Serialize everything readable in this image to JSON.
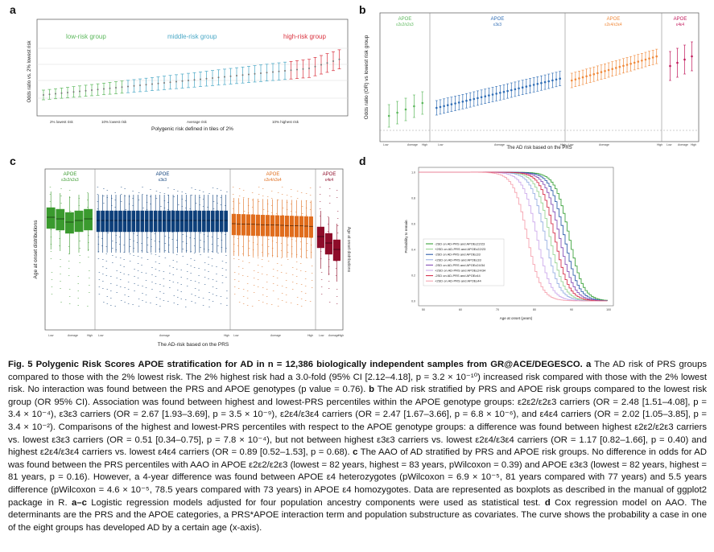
{
  "panels": {
    "a": {
      "label": "a",
      "ylabel": "Odds ratio vs. 2% lowest risk",
      "xlabel": "Polygenic risk defined in tiles of 2%",
      "groups": [
        {
          "name": "low-risk group",
          "color": "#5cb85c"
        },
        {
          "name": "middle-risk group",
          "color": "#4aa8c6"
        },
        {
          "name": "high-risk group",
          "color": "#d9323e"
        }
      ],
      "xticks": [
        "2% lowest risk",
        "10% lowest risk",
        "Average risk",
        "10% highest risk"
      ]
    },
    "b": {
      "label": "b",
      "ylabel": "Odds ratio (OR) vs lowest risk group",
      "xlabel": "The AD risk based on the PRS",
      "groups": [
        {
          "title": "APOE",
          "sub": "ε2ε2/ε2ε3",
          "color": "#5cb85c"
        },
        {
          "title": "APOE",
          "sub": "ε3ε3",
          "color": "#2f6db5"
        },
        {
          "title": "APOE",
          "sub": "ε2ε4/ε3ε4",
          "color": "#f08a3c"
        },
        {
          "title": "APOE",
          "sub": "ε4ε4",
          "color": "#c2185b"
        }
      ],
      "xticks": [
        "Low",
        "Average",
        "High"
      ]
    },
    "c": {
      "label": "c",
      "ylabel": "Age at onset distributions",
      "xlabel": "The AD-risk based on the PRS",
      "groups": [
        {
          "title": "APOE",
          "sub": "ε2ε2/ε2ε3",
          "color": "#3a9a2e"
        },
        {
          "title": "APOE",
          "sub": "ε3ε3",
          "color": "#0d3f7a"
        },
        {
          "title": "APOE",
          "sub": "ε2ε4/ε3ε4",
          "color": "#e06d1d"
        },
        {
          "title": "APOE",
          "sub": "ε4ε4",
          "color": "#8e0c2a"
        }
      ],
      "xticks": [
        "Low",
        "Average",
        "High"
      ]
    },
    "d": {
      "label": "d",
      "ylabel": "Probability to remain",
      "xlabel": "Age at onset (years)",
      "xticks": [
        "50",
        "60",
        "70",
        "80",
        "90",
        "100"
      ],
      "yticks": [
        "1.0",
        "0.8",
        "0.6",
        "0.4",
        "0.2",
        "0.0"
      ],
      "legend": [
        {
          "text": "-2SD on AD-PRS and APOEε22/23",
          "color": "#2a9a2a"
        },
        {
          "text": "+2SD on AD-PRS and APOEε22/23",
          "color": "#8fd08a"
        },
        {
          "text": "-2SD on AD-PRS and APOEε33",
          "color": "#1f4fa3"
        },
        {
          "text": "+2SD on AD-PRS and APOEε33",
          "color": "#8fa9e0"
        },
        {
          "text": "-2SD on AD-PRS and APOEε24/34",
          "color": "#7a3fb0"
        },
        {
          "text": "+2SD on AD-PRS and APOEε24/34",
          "color": "#c9a3ea"
        },
        {
          "text": "-2SD on AD-PRS and APOEε44",
          "color": "#d21f3c"
        },
        {
          "text": "+2SD on AD-PRS and APOEε44",
          "color": "#f59aa8"
        }
      ]
    }
  },
  "caption": {
    "title": "Fig. 5 Polygenic Risk Scores APOE stratification for AD in n = 12,386 biologically independent samples from GR@ACE/DEGESCO.",
    "la": "a",
    "ta": "The AD risk of PRS groups compared to those with the 2% lowest risk. The 2% highest risk had a 3.0-fold (95% CI [2.12–4.18], p = 3.2 × 10⁻¹⁰) increased risk compared with those with the 2% lowest risk. No interaction was found between the PRS and APOE genotypes (p value = 0.76).",
    "lb": "b",
    "tb": "The AD risk stratified by PRS and APOE risk groups compared to the lowest risk group (OR 95% CI). Association was found between highest and lowest-PRS percentiles within the APOE genotype groups: ε2ε2/ε2ε3 carriers (OR = 2.48 [1.51–4.08], p = 3.4 × 10⁻⁴), ε3ε3 carriers (OR = 2.67 [1.93–3.69], p = 3.5 × 10⁻⁹), ε2ε4/ε3ε4 carriers (OR = 2.47 [1.67–3.66], p = 6.8 × 10⁻⁶), and ε4ε4 carriers (OR = 2.02 [1.05–3.85], p = 3.4 × 10⁻²). Comparisons of the highest and lowest-PRS percentiles with respect to the APOE genotype groups: a difference was found between highest ε2ε2/ε2ε3 carriers vs. lowest ε3ε3 carriers (OR = 0.51 [0.34–0.75], p = 7.8 × 10⁻⁴), but not between highest ε3ε3 carriers vs. lowest ε2ε4/ε3ε4 carriers (OR = 1.17 [0.82–1.66], p = 0.40) and highest ε2ε4/ε3ε4 carriers vs. lowest ε4ε4 carriers (OR = 0.89 [0.52–1.53], p = 0.68).",
    "lc": "c",
    "tc": "The AAO of AD stratified by PRS and APOE risk groups. No difference in odds for AD was found between the PRS percentiles with AAO in APOE ε2ε2/ε2ε3 (lowest = 82 years, highest = 83 years, pWilcoxon = 0.39) and APOE ε3ε3 (lowest = 82 years, highest = 81 years, p = 0.16). However, a 4-year difference was found between APOE ε4 heterozygotes (pWilcoxon = 6.9 × 10⁻⁵, 81 years compared with 77 years) and 5.5 years difference (pWilcoxon = 4.6 × 10⁻⁵, 78.5 years compared with 73 years) in APOE ε4 homozygotes. Data are represented as boxplots as described in the manual of ggplot2 package in R.",
    "lac": "a–c",
    "tac": "Logistic regression models adjusted for four population ancestry components were used as statistical test.",
    "ld": "d",
    "td": "Cox regression model on AAO. The determinants are the PRS and the APOE categories, a PRS*APOE interaction term and population substructure as covariates. The curve shows the probability a case in one of the eight groups has developed AD by a certain age (x-axis)."
  }
}
